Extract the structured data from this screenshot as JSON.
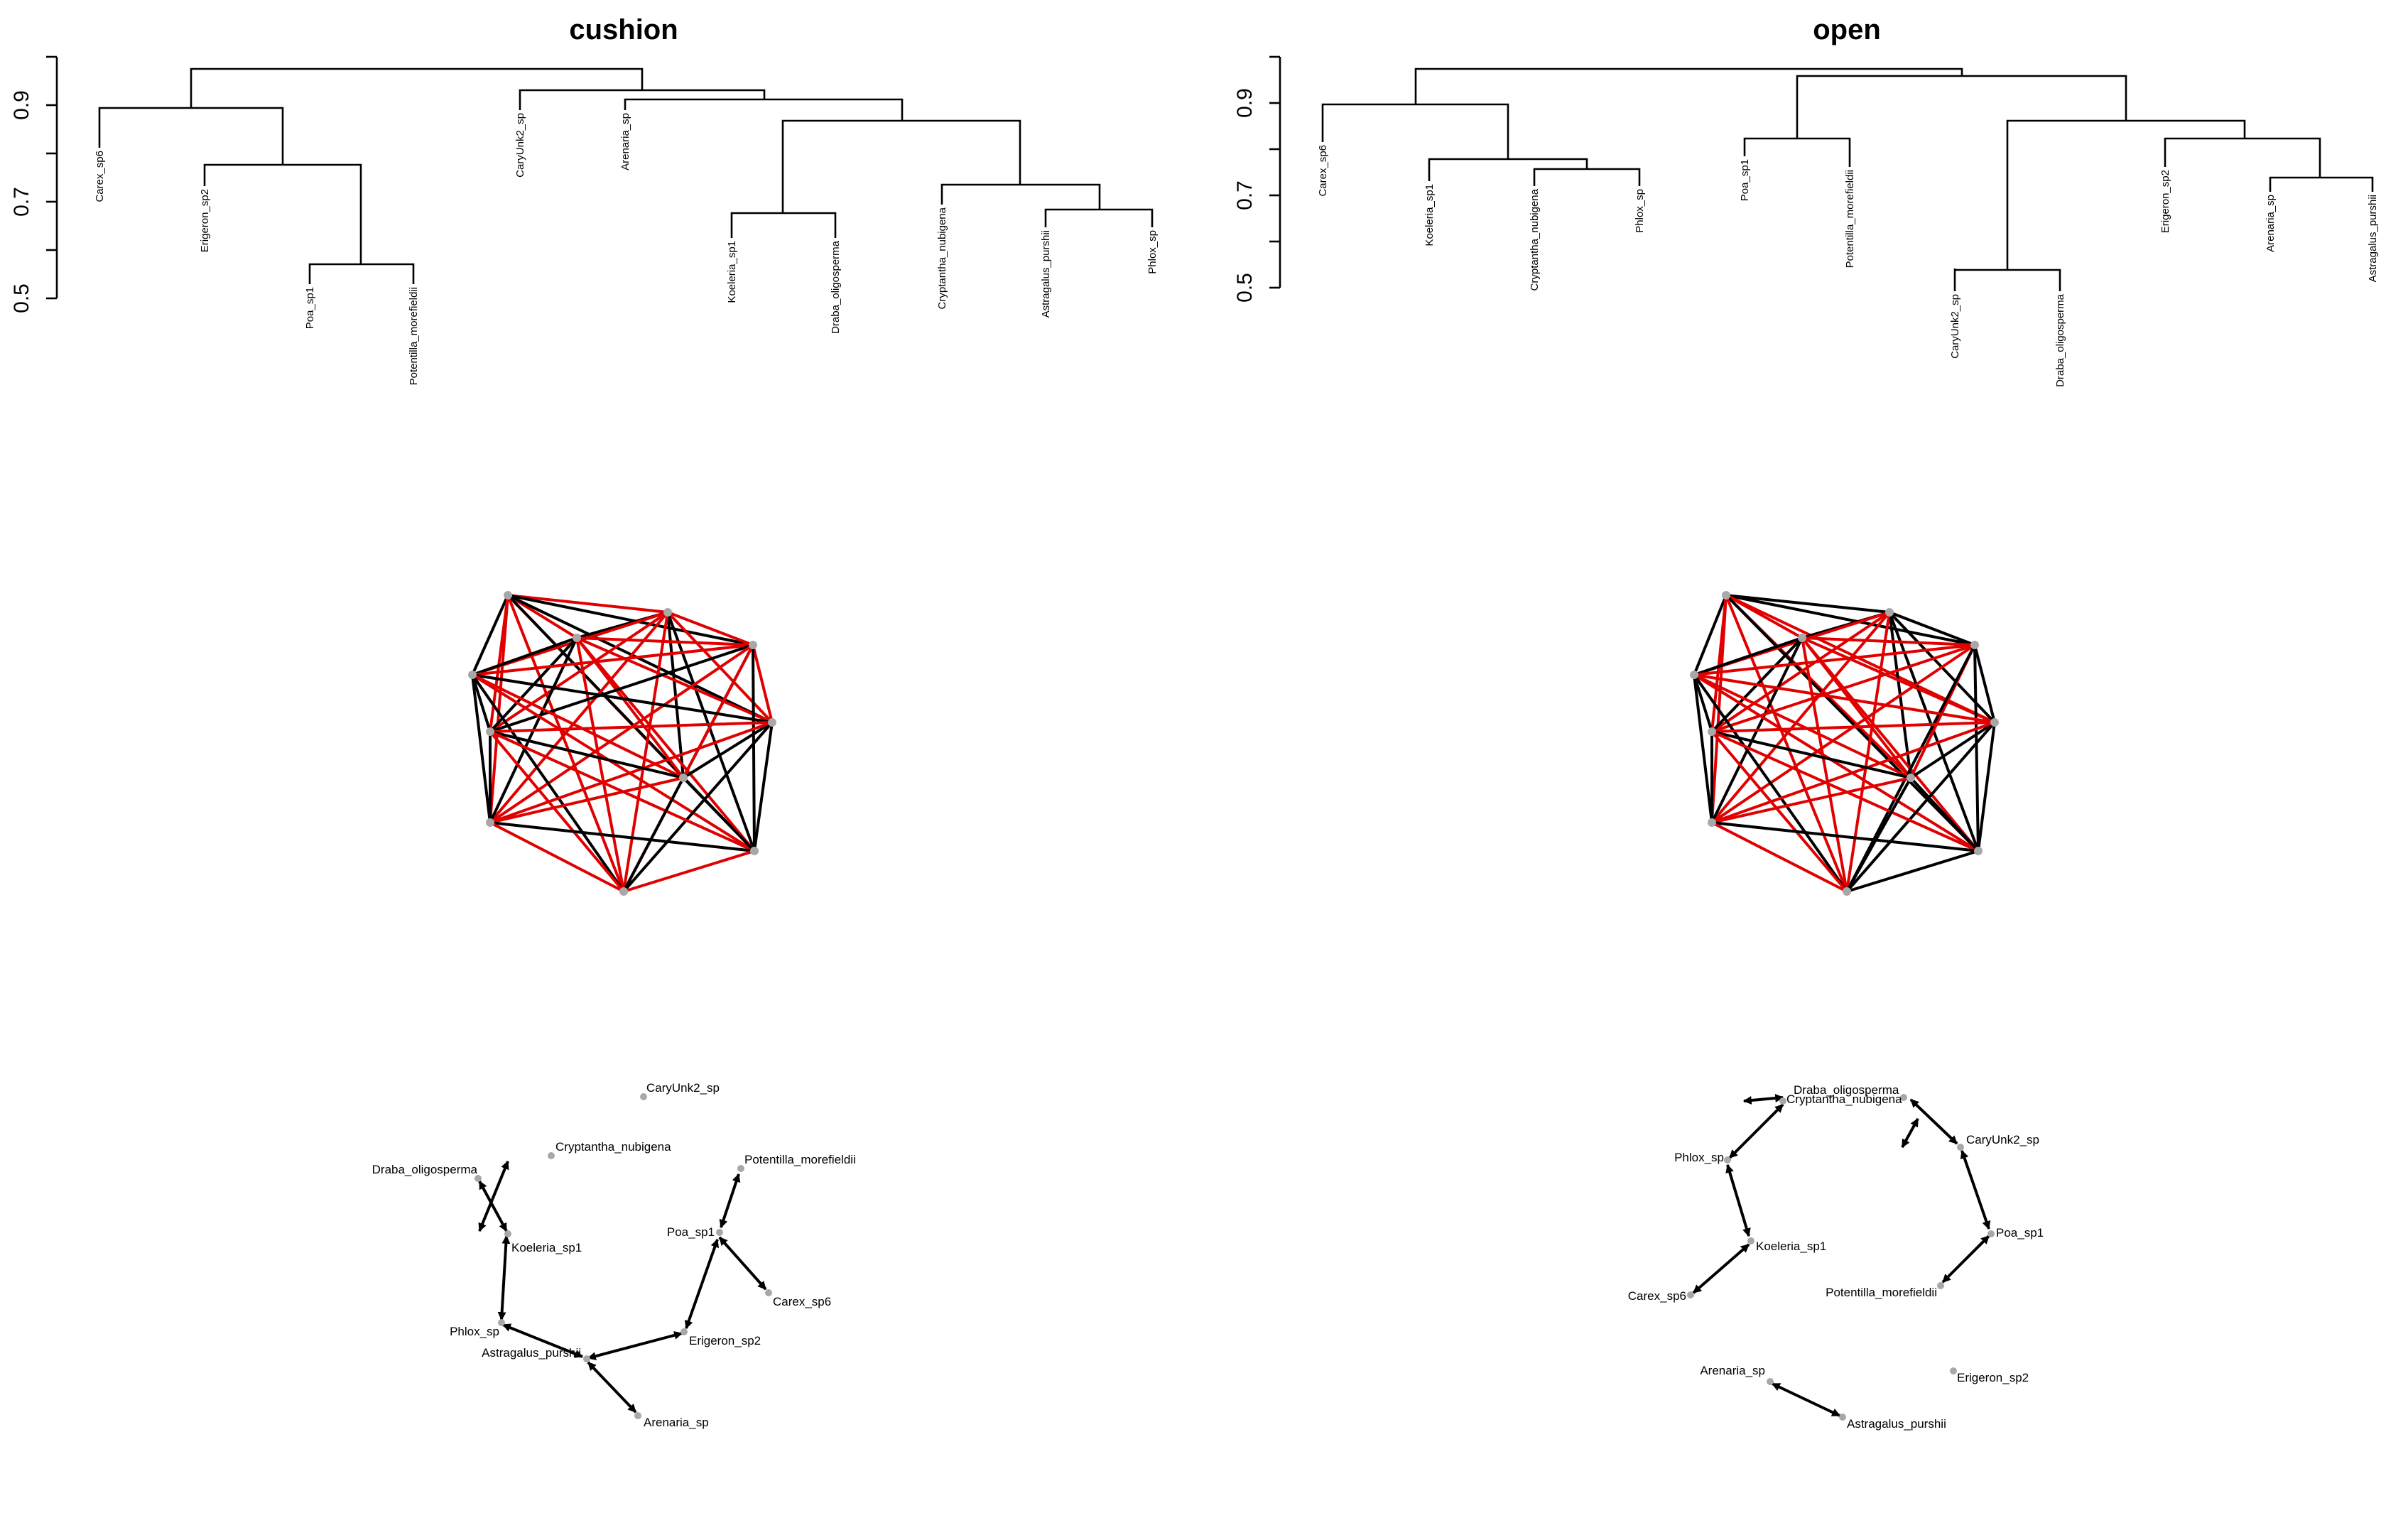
{
  "panels": [
    {
      "title": "cushion",
      "dendrogram": {
        "y_ticks": [
          "0.5",
          "0.7",
          "0.9"
        ],
        "leaves": [
          "Carex_sp6",
          "Erigeron_sp2",
          "Poa_sp1",
          "Potentilla_morefieldii",
          "CaryUnk2_sp",
          "Arenaria_sp",
          "Koeleria_sp1",
          "Draba_oligosperma",
          "Cryptantha_nubigena",
          "Astragalus_purshii",
          "Phlox_sp"
        ]
      },
      "network": {
        "labels": [
          "CaryUnk2_sp",
          "Cryptantha_nubigena",
          "Draba_oligosperma",
          "Potentilla_morefieldii",
          "Koeleria_sp1",
          "Poa_sp1",
          "Carex_sp6",
          "Phlox_sp",
          "Astragalus_purshii",
          "Erigeron_sp2",
          "Arenaria_sp"
        ]
      }
    },
    {
      "title": "open",
      "dendrogram": {
        "y_ticks": [
          "0.5",
          "0.7",
          "0.9"
        ],
        "leaves": [
          "Carex_sp6",
          "Koeleria_sp1",
          "Cryptantha_nubigena",
          "Phlox_sp",
          "Poa_sp1",
          "Potentilla_morefieldii",
          "CaryUnk2_sp",
          "Draba_oligosperma",
          "Erigeron_sp2",
          "Arenaria_sp",
          "Astragalus_purshii"
        ]
      },
      "network": {
        "labels": [
          "Draba_oligosperma",
          "Cryptantha_nubigena",
          "CaryUnk2_sp",
          "Phlox_sp",
          "Poa_sp1",
          "Koeleria_sp1",
          "Potentilla_morefieldii",
          "Carex_sp6",
          "Arenaria_sp",
          "Erigeron_sp2",
          "Astragalus_purshii"
        ]
      }
    }
  ],
  "colors": {
    "positive_edge": "#000000",
    "negative_edge": "#e00000",
    "node": "#a8a8a8"
  }
}
